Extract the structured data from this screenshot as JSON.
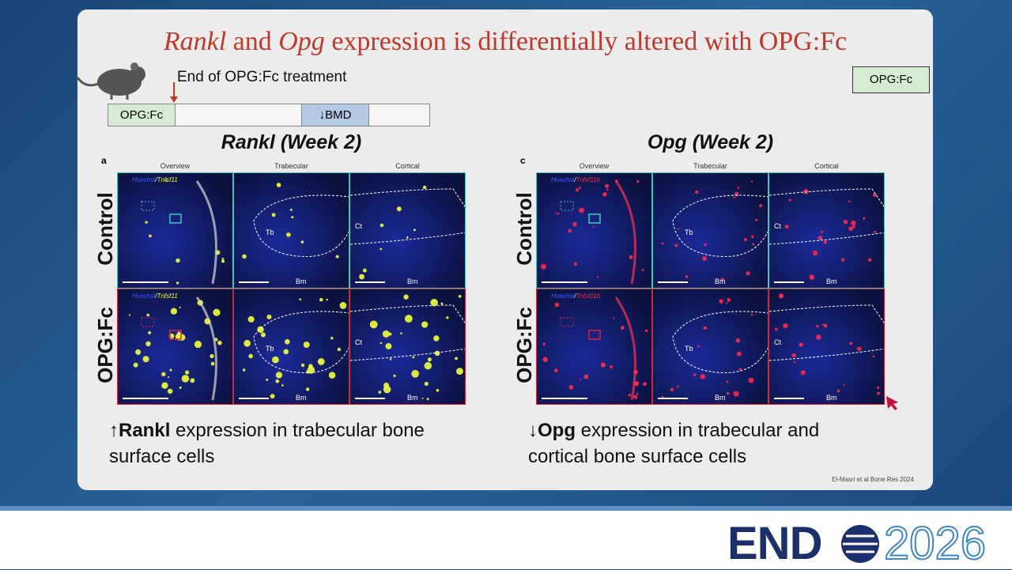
{
  "title": {
    "part1": "Rankl",
    "part2": " and ",
    "part3": "Opg",
    "part4": " expression is differentially altered with OPG:Fc"
  },
  "timeline": {
    "note": "End of OPG:Fc treatment",
    "start": "OPG:Fc",
    "marker": "↓BMD"
  },
  "tag": "OPG:Fc",
  "panels": [
    {
      "heading": "Rankl (Week 2)",
      "letter": "a",
      "columns": [
        "Overview",
        "Trabecular",
        "Cortical"
      ],
      "rows": [
        "Control",
        "OPG:Fc"
      ],
      "stain": {
        "nuclear": "Hoechst",
        "separator": "/",
        "target": "Tnfsf11"
      },
      "labels": {
        "tb": "Tb",
        "ct": "Ct",
        "bm": "Bm"
      },
      "caption": {
        "arrow": "↑",
        "gene": "Rankl",
        "rest": " expression in trabecular bone surface cells"
      }
    },
    {
      "heading": "Opg (Week 2)",
      "letter": "c",
      "columns": [
        "Overview",
        "Trabecular",
        "Cortical"
      ],
      "rows": [
        "Control",
        "OPG:Fc"
      ],
      "stain": {
        "nuclear": "Hoechst",
        "separator": "/",
        "target": "Tnfsf11b"
      },
      "labels": {
        "tb": "Tb",
        "ct": "Ct",
        "bm": "Bm"
      },
      "caption": {
        "arrow": "↓",
        "gene": "Opg",
        "rest": " expression in trabecular and cortical bone surface cells"
      }
    }
  ],
  "citation": "El-Masri et al Bone Res 2024",
  "logo": {
    "word": "END",
    "year": "2026"
  }
}
